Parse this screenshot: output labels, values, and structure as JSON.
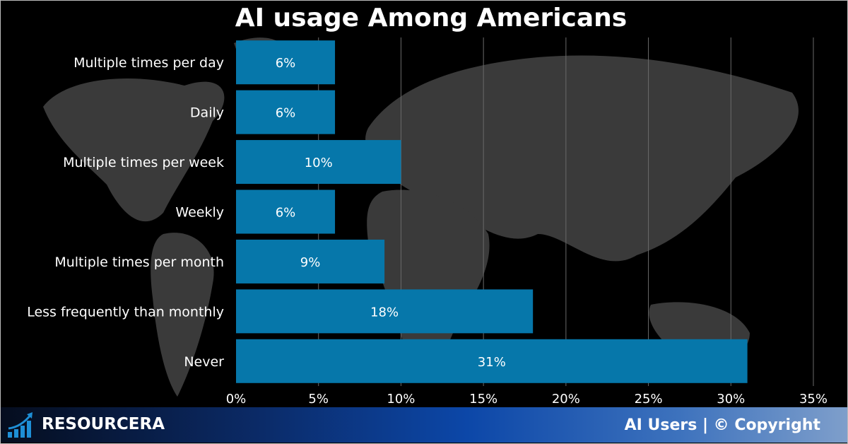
{
  "chart_data": {
    "type": "bar",
    "orientation": "horizontal",
    "title": "AI usage Among Americans",
    "categories": [
      "Multiple times per day",
      "Daily",
      "Multiple times per week",
      "Weekly",
      "Multiple times per month",
      "Less frequently than monthly",
      "Never"
    ],
    "values": [
      6,
      6,
      10,
      6,
      9,
      18,
      31
    ],
    "data_labels": [
      "6%",
      "6%",
      "10%",
      "6%",
      "9%",
      "18%",
      "31%"
    ],
    "xlim": [
      0,
      35
    ],
    "xticks": [
      "0%",
      "5%",
      "10%",
      "15%",
      "20%",
      "25%",
      "30%",
      "35%"
    ],
    "grid": true,
    "bar_color": "#0677aa",
    "xlabel": "",
    "ylabel": ""
  },
  "footer": {
    "brand": "RESOURCERA",
    "right_text": "AI Users | © Copyright"
  }
}
